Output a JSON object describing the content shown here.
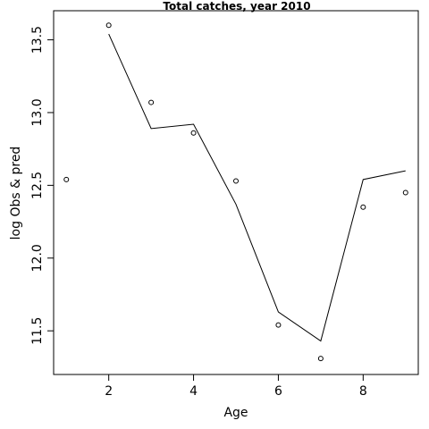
{
  "chart_data": {
    "type": "line",
    "title": "Total catches, year 2010",
    "xlabel": "Age",
    "ylabel": "log Obs & pred",
    "xlim": [
      0.7,
      9.3
    ],
    "ylim": [
      11.2,
      13.7
    ],
    "x_ticks": [
      2,
      4,
      6,
      8
    ],
    "y_ticks": [
      11.5,
      12.0,
      12.5,
      13.0,
      13.5
    ],
    "x_tick_labels": [
      "2",
      "4",
      "6",
      "8"
    ],
    "y_tick_labels": [
      "11.5",
      "12.0",
      "12.5",
      "13.0",
      "13.5"
    ],
    "grid": false,
    "series": [
      {
        "render": "points",
        "x": [
          1,
          2,
          3,
          4,
          5,
          6,
          7,
          8,
          9
        ],
        "values": [
          12.54,
          13.6,
          13.07,
          12.86,
          12.53,
          11.54,
          11.31,
          12.35,
          12.45
        ]
      },
      {
        "render": "line",
        "x": [
          2,
          3,
          4,
          5,
          6,
          7,
          8,
          9
        ],
        "values": [
          13.54,
          12.89,
          12.92,
          12.37,
          11.63,
          11.43,
          12.54,
          12.6
        ]
      }
    ]
  }
}
